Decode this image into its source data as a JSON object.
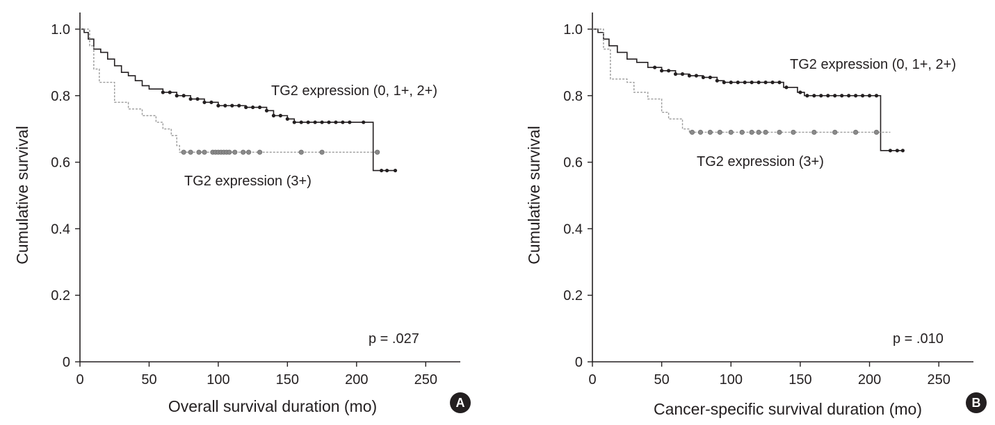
{
  "chart_data": [
    {
      "type": "line",
      "panel_label": "A",
      "title": "",
      "xlabel": "Overall survival duration (mo)",
      "ylabel": "Cumulative survival",
      "xlim": [
        0,
        275
      ],
      "ylim": [
        0,
        1.05
      ],
      "x_ticks": [
        "0",
        "50",
        "100",
        "150",
        "200",
        "250"
      ],
      "y_ticks": [
        "0",
        "0.2",
        "0.4",
        "0.6",
        "0.8",
        "1.0"
      ],
      "p_value": "p = .027",
      "series": [
        {
          "name": "TG2 expression (0, 1+, 2+)",
          "color": "#231f20",
          "step_points": [
            [
              0,
              1.0
            ],
            [
              3,
              0.99
            ],
            [
              6,
              0.97
            ],
            [
              10,
              0.94
            ],
            [
              15,
              0.93
            ],
            [
              20,
              0.91
            ],
            [
              25,
              0.89
            ],
            [
              30,
              0.87
            ],
            [
              35,
              0.86
            ],
            [
              40,
              0.845
            ],
            [
              45,
              0.83
            ],
            [
              50,
              0.82
            ],
            [
              60,
              0.81
            ],
            [
              70,
              0.8
            ],
            [
              80,
              0.79
            ],
            [
              90,
              0.78
            ],
            [
              100,
              0.77
            ],
            [
              120,
              0.765
            ],
            [
              135,
              0.755
            ],
            [
              140,
              0.74
            ],
            [
              150,
              0.73
            ],
            [
              155,
              0.72
            ],
            [
              212,
              0.72
            ],
            [
              212,
              0.575
            ],
            [
              228,
              0.575
            ]
          ],
          "censor_x": [
            60,
            65,
            70,
            75,
            80,
            85,
            90,
            95,
            100,
            105,
            110,
            115,
            120,
            125,
            130,
            135,
            140,
            145,
            150,
            155,
            160,
            165,
            170,
            175,
            180,
            185,
            190,
            195,
            205,
            218,
            222,
            228
          ]
        },
        {
          "name": "TG2 expression (3+)",
          "color": "#8a8a8a",
          "step_points": [
            [
              0,
              1.0
            ],
            [
              7,
              0.95
            ],
            [
              10,
              0.88
            ],
            [
              14,
              0.84
            ],
            [
              20,
              0.84
            ],
            [
              25,
              0.78
            ],
            [
              35,
              0.76
            ],
            [
              45,
              0.74
            ],
            [
              55,
              0.72
            ],
            [
              60,
              0.7
            ],
            [
              66,
              0.68
            ],
            [
              70,
              0.65
            ],
            [
              72,
              0.63
            ],
            [
              215,
              0.63
            ]
          ],
          "censor_x": [
            75,
            80,
            86,
            90,
            96,
            98,
            100,
            102,
            104,
            106,
            108,
            112,
            118,
            122,
            130,
            160,
            175,
            215
          ]
        }
      ],
      "annotations": [
        {
          "text": "TG2 expression (0, 1+, 2+)",
          "series": 0
        },
        {
          "text": "TG2 expression (3+)",
          "series": 1
        }
      ]
    },
    {
      "type": "line",
      "panel_label": "B",
      "title": "",
      "xlabel": "Cancer-specific survival duration (mo)",
      "ylabel": "Cumulative survival",
      "xlim": [
        0,
        275
      ],
      "ylim": [
        0,
        1.05
      ],
      "x_ticks": [
        "0",
        "50",
        "100",
        "150",
        "200",
        "250"
      ],
      "y_ticks": [
        "0",
        "0.2",
        "0.4",
        "0.6",
        "0.8",
        "1.0"
      ],
      "p_value": "p = .010",
      "series": [
        {
          "name": "TG2 expression (0, 1+, 2+)",
          "color": "#231f20",
          "step_points": [
            [
              0,
              1.0
            ],
            [
              4,
              0.99
            ],
            [
              8,
              0.97
            ],
            [
              12,
              0.95
            ],
            [
              18,
              0.93
            ],
            [
              25,
              0.91
            ],
            [
              32,
              0.9
            ],
            [
              40,
              0.885
            ],
            [
              50,
              0.875
            ],
            [
              60,
              0.865
            ],
            [
              70,
              0.86
            ],
            [
              80,
              0.855
            ],
            [
              90,
              0.845
            ],
            [
              95,
              0.84
            ],
            [
              130,
              0.84
            ],
            [
              138,
              0.825
            ],
            [
              148,
              0.81
            ],
            [
              153,
              0.8
            ],
            [
              208,
              0.8
            ],
            [
              208,
              0.635
            ],
            [
              224,
              0.635
            ]
          ],
          "censor_x": [
            45,
            50,
            55,
            60,
            65,
            70,
            75,
            80,
            85,
            90,
            95,
            100,
            105,
            110,
            115,
            120,
            125,
            130,
            135,
            140,
            150,
            155,
            160,
            165,
            170,
            175,
            180,
            185,
            190,
            195,
            200,
            205,
            215,
            220,
            224
          ]
        },
        {
          "name": "TG2 expression (3+)",
          "color": "#8a8a8a",
          "step_points": [
            [
              0,
              1.0
            ],
            [
              8,
              0.94
            ],
            [
              13,
              0.85
            ],
            [
              25,
              0.84
            ],
            [
              30,
              0.81
            ],
            [
              40,
              0.79
            ],
            [
              50,
              0.75
            ],
            [
              55,
              0.73
            ],
            [
              65,
              0.7
            ],
            [
              70,
              0.69
            ],
            [
              215,
              0.69
            ]
          ],
          "censor_x": [
            72,
            78,
            85,
            92,
            100,
            108,
            115,
            120,
            125,
            135,
            145,
            160,
            175,
            190,
            205
          ]
        }
      ],
      "annotations": [
        {
          "text": "TG2 expression (0, 1+, 2+)",
          "series": 0
        },
        {
          "text": "TG2 expression (3+)",
          "series": 1
        }
      ]
    }
  ]
}
